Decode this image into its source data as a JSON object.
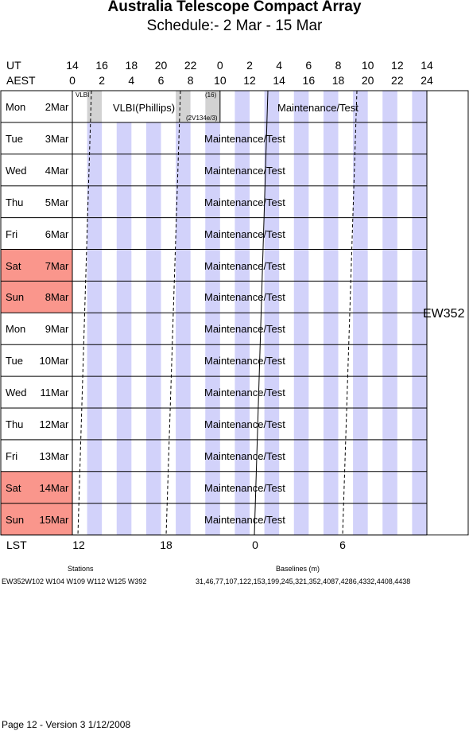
{
  "title": "Australia Telescope Compact Array",
  "subtitle": "Schedule:- 2  Mar - 15 Mar",
  "axis": {
    "ut_label": "UT",
    "aest_label": "AEST",
    "lst_label": "LST",
    "ut_ticks": [
      "14",
      "16",
      "18",
      "20",
      "22",
      "0",
      "2",
      "4",
      "6",
      "8",
      "10",
      "12",
      "14"
    ],
    "aest_ticks": [
      "0",
      "2",
      "4",
      "6",
      "8",
      "10",
      "12",
      "14",
      "16",
      "18",
      "20",
      "22",
      "24"
    ],
    "lst_ticks": [
      "12",
      "18",
      "0",
      "6"
    ]
  },
  "days": [
    {
      "dow": "Mon",
      "date": "2",
      "month": "Mar",
      "weekend": false
    },
    {
      "dow": "Tue",
      "date": "3",
      "month": "Mar",
      "weekend": false
    },
    {
      "dow": "Wed",
      "date": "4",
      "month": "Mar",
      "weekend": false
    },
    {
      "dow": "Thu",
      "date": "5",
      "month": "Mar",
      "weekend": false
    },
    {
      "dow": "Fri",
      "date": "6",
      "month": "Mar",
      "weekend": false
    },
    {
      "dow": "Sat",
      "date": "7",
      "month": "Mar",
      "weekend": true
    },
    {
      "dow": "Sun",
      "date": "8",
      "month": "Mar",
      "weekend": true
    },
    {
      "dow": "Mon",
      "date": "9",
      "month": "Mar",
      "weekend": false
    },
    {
      "dow": "Tue",
      "date": "10",
      "month": "Mar",
      "weekend": false
    },
    {
      "dow": "Wed",
      "date": "11",
      "month": "Mar",
      "weekend": false
    },
    {
      "dow": "Thu",
      "date": "12",
      "month": "Mar",
      "weekend": false
    },
    {
      "dow": "Fri",
      "date": "13",
      "month": "Mar",
      "weekend": false
    },
    {
      "dow": "Sat",
      "date": "14",
      "month": "Mar",
      "weekend": true
    },
    {
      "dow": "Sun",
      "date": "15",
      "month": "Mar",
      "weekend": true
    }
  ],
  "row1": {
    "vlbi_small": "VLBI",
    "vlbi_main": "VLBI(Phillips)",
    "tag_16": "(16)",
    "tag_code": "(2V134e/3)",
    "maintenance": "Maintenance/Test"
  },
  "maintenance_label": "Maintenance/Test",
  "config_label": "EW352",
  "footer": {
    "stations_title": "Stations",
    "stations": "EW352W102 W104 W109 W112 W125 W392",
    "baselines_title": "Baselines (m)",
    "baselines": "31,46,77,107,122,153,199,245,321,352,4087,4286,4332,4408,4438",
    "version": "Page 12 - Version 3  1/12/2008"
  },
  "colors": {
    "weekend": "#fa968c",
    "stripe": "#d2d2fa",
    "vlbi_block": "#d2d2d2"
  }
}
